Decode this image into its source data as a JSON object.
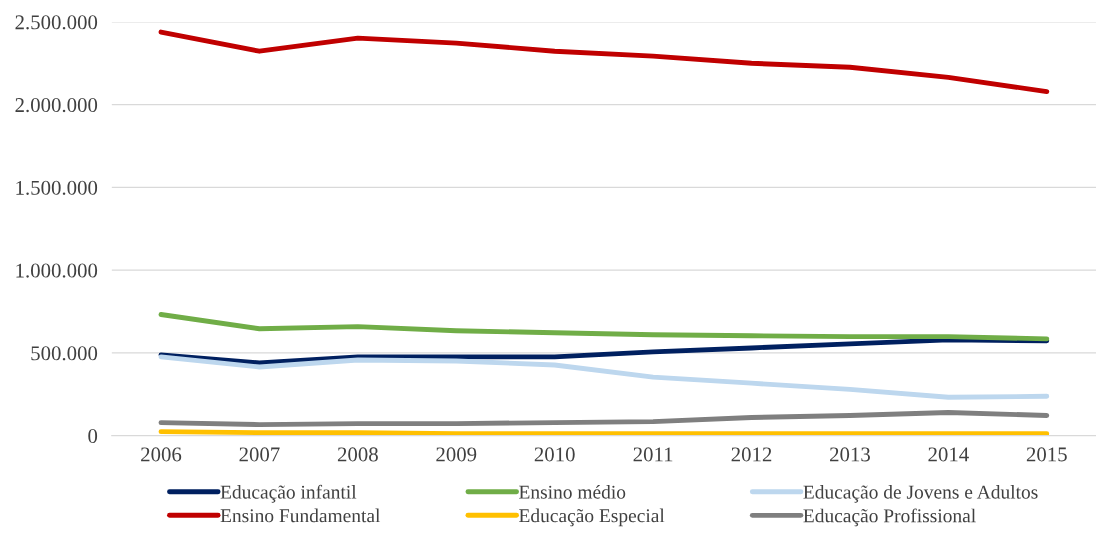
{
  "chart_data": {
    "type": "line",
    "categories": [
      "2006",
      "2007",
      "2008",
      "2009",
      "2010",
      "2011",
      "2012",
      "2013",
      "2014",
      "2015"
    ],
    "series": [
      {
        "name": "Educação infantil",
        "color": "#002060",
        "values": [
          488000,
          439000,
          476000,
          476000,
          476000,
          506000,
          530000,
          555000,
          579000,
          573000
        ]
      },
      {
        "name": "Ensino Fundamental",
        "color": "#c00000",
        "values": [
          2439000,
          2323000,
          2402000,
          2372000,
          2323000,
          2293000,
          2250000,
          2226000,
          2165000,
          2079000
        ]
      },
      {
        "name": "Ensino médio",
        "color": "#70ad47",
        "values": [
          732000,
          646000,
          659000,
          634000,
          622000,
          610000,
          604000,
          598000,
          598000,
          585000
        ]
      },
      {
        "name": "Educação Especial",
        "color": "#ffc000",
        "values": [
          24000,
          18000,
          18000,
          12000,
          12000,
          12000,
          12000,
          12000,
          12000,
          12000
        ]
      },
      {
        "name": "Educação de Jovens e Adultos",
        "color": "#bdd7ee",
        "values": [
          476000,
          415000,
          457000,
          451000,
          427000,
          354000,
          317000,
          280000,
          232000,
          238000
        ]
      },
      {
        "name": "Educação Profissional",
        "color": "#7f7f7f",
        "values": [
          79000,
          67000,
          73000,
          73000,
          79000,
          85000,
          110000,
          122000,
          140000,
          122000
        ]
      }
    ],
    "ylim": [
      0,
      2500000
    ],
    "yticks": [
      {
        "value": 0,
        "label": "0"
      },
      {
        "value": 500000,
        "label": "500.000"
      },
      {
        "value": 1000000,
        "label": "1.000.000"
      },
      {
        "value": 1500000,
        "label": "1.500.000"
      },
      {
        "value": 2000000,
        "label": "2.000.000"
      },
      {
        "value": 2500000,
        "label": "2.500.000"
      }
    ],
    "grid": "y",
    "legend": "bottom",
    "marker": "none",
    "line_style": "solid"
  }
}
